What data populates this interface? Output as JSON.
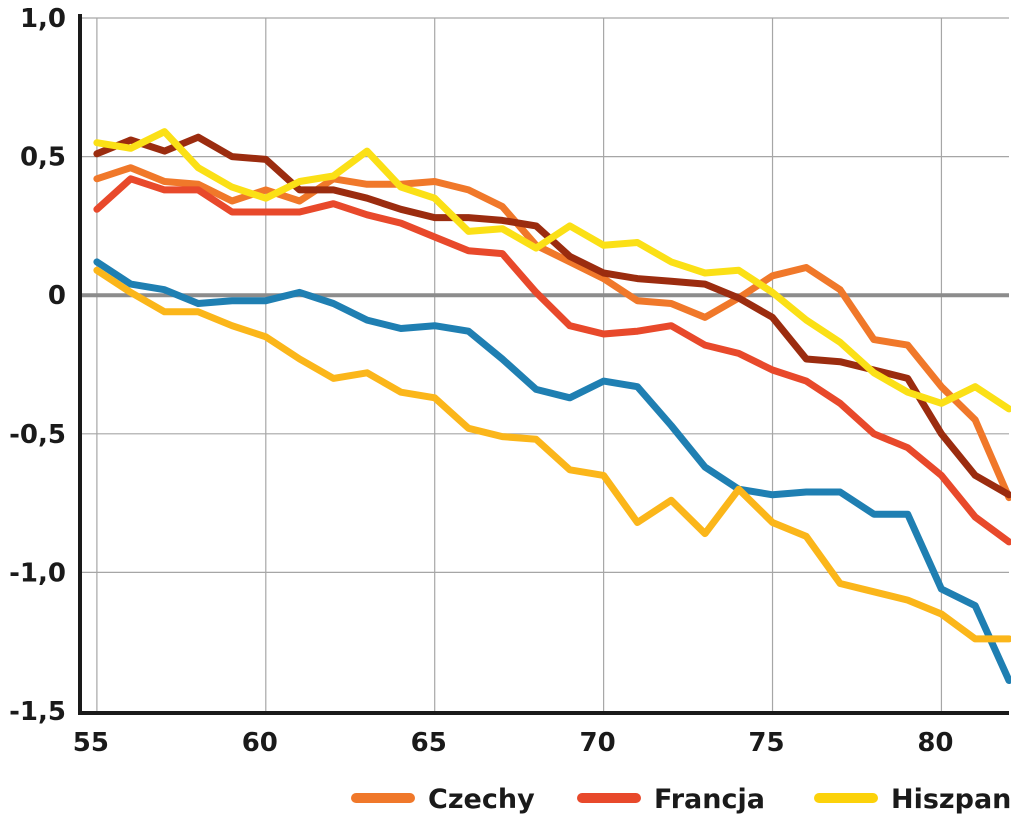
{
  "chart_data": {
    "type": "line",
    "title": "",
    "xlabel": "",
    "ylabel": "",
    "xlim": [
      54.5,
      82
    ],
    "ylim": [
      -1.5,
      1.0
    ],
    "grid": true,
    "legend_position": "bottom",
    "x_ticks": [
      55,
      60,
      65,
      70,
      75,
      80
    ],
    "x_tick_labels": [
      "55",
      "60",
      "65",
      "70",
      "75",
      "80"
    ],
    "y_ticks": [
      1.0,
      0.5,
      0,
      -0.5,
      -1.0,
      -1.5
    ],
    "y_tick_labels": [
      "1,0",
      "0,5",
      "0",
      "-0,5",
      "-1,0",
      "-1,5"
    ],
    "x": [
      55,
      56,
      57,
      58,
      59,
      60,
      61,
      62,
      63,
      64,
      65,
      66,
      67,
      68,
      69,
      70,
      71,
      72,
      73,
      74,
      75,
      76,
      77,
      78,
      79,
      80,
      81,
      82
    ],
    "legend": [
      {
        "name": "Czechy",
        "color": "#f0782a"
      },
      {
        "name": "Francja",
        "color": "#e8492b"
      },
      {
        "name": "Hiszpan",
        "color": "#fcd20a"
      }
    ],
    "series": [
      {
        "color": "#f0782a",
        "values": [
          0.42,
          0.46,
          0.41,
          0.4,
          0.34,
          0.38,
          0.34,
          0.42,
          0.4,
          0.4,
          0.41,
          0.38,
          0.32,
          0.18,
          0.12,
          0.06,
          -0.02,
          -0.03,
          -0.08,
          -0.01,
          0.07,
          0.1,
          0.02,
          -0.16,
          -0.18,
          -0.33,
          -0.45,
          -0.73
        ]
      },
      {
        "color": "#e8492b",
        "values": [
          0.31,
          0.42,
          0.38,
          0.38,
          0.3,
          0.3,
          0.3,
          0.33,
          0.29,
          0.26,
          0.21,
          0.16,
          0.15,
          0.01,
          -0.11,
          -0.14,
          -0.13,
          -0.11,
          -0.18,
          -0.21,
          -0.27,
          -0.31,
          -0.39,
          -0.5,
          -0.55,
          -0.65,
          -0.8,
          -0.89
        ]
      },
      {
        "color": "#9b2c0f",
        "values": [
          0.51,
          0.56,
          0.52,
          0.57,
          0.5,
          0.49,
          0.38,
          0.38,
          0.35,
          0.31,
          0.28,
          0.28,
          0.27,
          0.25,
          0.14,
          0.08,
          0.06,
          0.05,
          0.04,
          -0.01,
          -0.08,
          -0.23,
          -0.24,
          -0.27,
          -0.3,
          -0.5,
          -0.65,
          -0.72
        ]
      },
      {
        "color": "#fbe016",
        "values": [
          0.55,
          0.53,
          0.59,
          0.46,
          0.39,
          0.35,
          0.41,
          0.43,
          0.52,
          0.39,
          0.35,
          0.23,
          0.24,
          0.17,
          0.25,
          0.18,
          0.19,
          0.12,
          0.08,
          0.09,
          0.01,
          -0.09,
          -0.17,
          -0.28,
          -0.35,
          -0.39,
          -0.33,
          -0.41
        ]
      },
      {
        "color": "#1f7fb2",
        "values": [
          0.12,
          0.04,
          0.02,
          -0.03,
          -0.02,
          -0.02,
          0.01,
          -0.03,
          -0.09,
          -0.12,
          -0.11,
          -0.13,
          -0.23,
          -0.34,
          -0.37,
          -0.31,
          -0.33,
          -0.47,
          -0.62,
          -0.7,
          -0.72,
          -0.71,
          -0.71,
          -0.79,
          -0.79,
          -1.06,
          -1.12,
          -1.39
        ]
      },
      {
        "color": "#fbb61a",
        "values": [
          0.09,
          0.01,
          -0.06,
          -0.06,
          -0.11,
          -0.15,
          -0.23,
          -0.3,
          -0.28,
          -0.35,
          -0.37,
          -0.48,
          -0.51,
          -0.52,
          -0.63,
          -0.65,
          -0.82,
          -0.74,
          -0.86,
          -0.7,
          -0.82,
          -0.87,
          -1.04,
          -1.07,
          -1.1,
          -1.15,
          -1.24,
          -1.24
        ]
      }
    ]
  }
}
